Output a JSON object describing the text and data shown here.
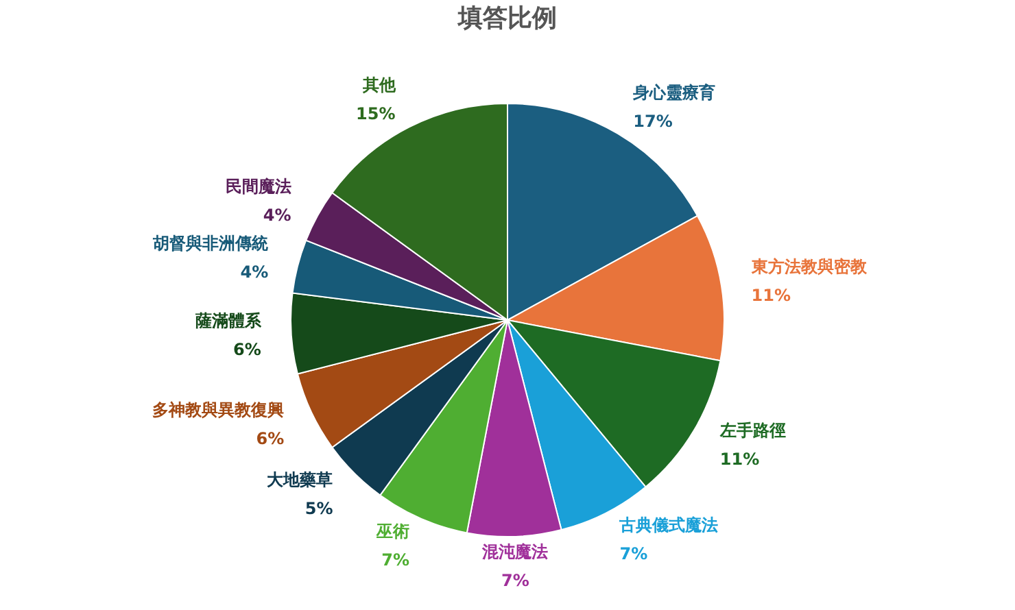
{
  "chart_data": {
    "type": "pie",
    "title": "填答比例",
    "categories": [
      "身心靈療育",
      "東方法教與密教",
      "左手路徑",
      "古典儀式魔法",
      "混沌魔法",
      "巫術",
      "大地藥草",
      "多神教與異教復興",
      "薩滿體系",
      "胡督與非洲傳統",
      "民間魔法",
      "其他"
    ],
    "values": [
      17,
      11,
      11,
      7,
      7,
      7,
      5,
      6,
      6,
      4,
      4,
      15
    ],
    "value_labels": [
      "17%",
      "11%",
      "11%",
      "7%",
      "7%",
      "7%",
      "5%",
      "6%",
      "6%",
      "4%",
      "4%",
      "15%"
    ],
    "colors": [
      "#1b5e80",
      "#e8743b",
      "#1e6b24",
      "#1aa0d8",
      "#a0309a",
      "#4fae32",
      "#0f3a50",
      "#a34a14",
      "#154a1a",
      "#175a78",
      "#5a1f5a",
      "#2e6b1f"
    ],
    "legend": false
  }
}
